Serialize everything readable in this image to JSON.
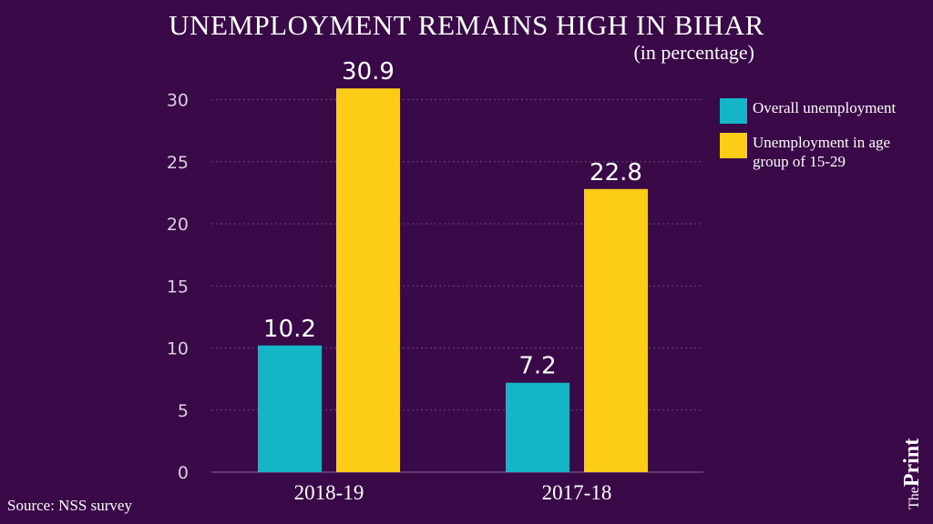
{
  "chart_data": {
    "type": "bar",
    "title": "UNEMPLOYMENT REMAINS HIGH IN BIHAR",
    "subtitle": "(in percentage)",
    "categories": [
      "2018-19",
      "2017-18"
    ],
    "series": [
      {
        "name": "Overall unemployment",
        "color": "#13b5c6",
        "values": [
          10.2,
          7.2
        ]
      },
      {
        "name": "Unemployment in age group of 15-29",
        "color": "#fccc16",
        "values": [
          30.9,
          22.8
        ]
      }
    ],
    "ylim": [
      0,
      32
    ],
    "yticks": [
      0,
      5,
      10,
      15,
      20,
      25,
      30
    ],
    "xlabel": "",
    "ylabel": "",
    "grid": true,
    "legend": "top-right"
  },
  "source": "Source: NSS survey",
  "brand": {
    "the": "The",
    "print": "Print"
  }
}
